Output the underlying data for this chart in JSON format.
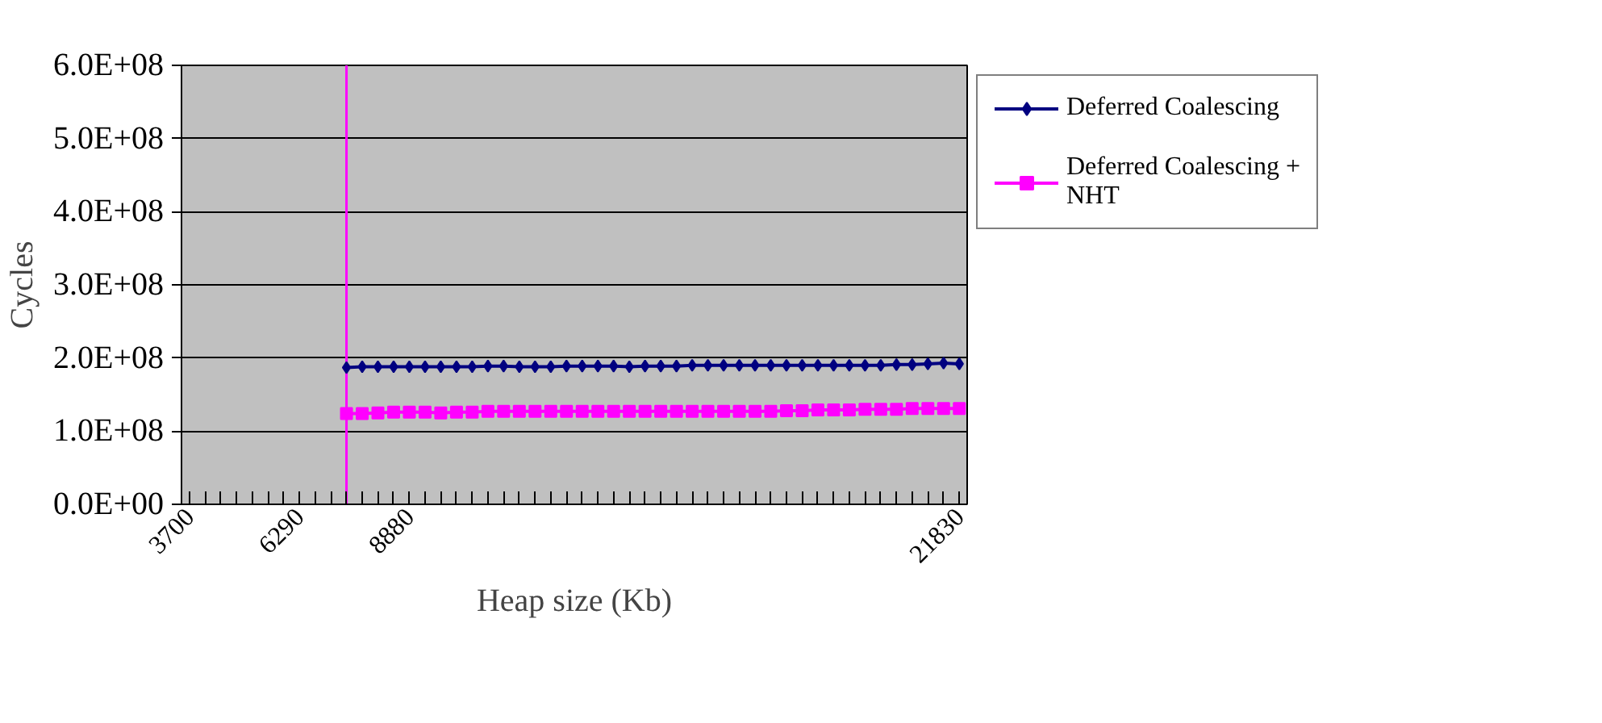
{
  "chart_data": {
    "type": "line",
    "xlabel": "Heap size (Kb)",
    "ylabel": "Cycles",
    "x": [
      7400,
      7770,
      8140,
      8510,
      8880,
      9250,
      9620,
      9990,
      10360,
      10730,
      11100,
      11470,
      11840,
      12210,
      12580,
      12950,
      13320,
      13690,
      14060,
      14430,
      14800,
      15170,
      15540,
      15910,
      16280,
      16650,
      17020,
      17390,
      17760,
      18130,
      18500,
      18870,
      19240,
      19610,
      19980,
      20350,
      20720,
      21090,
      21460,
      21830
    ],
    "series": [
      {
        "name": "Deferred Coalescing",
        "color": "#000080",
        "marker": "diamond",
        "values": [
          187000000,
          188000000,
          188000000,
          188000000,
          188000000,
          188000000,
          188000000,
          188000000,
          188000000,
          189000000,
          189000000,
          188000000,
          188000000,
          188000000,
          189000000,
          189000000,
          189000000,
          189000000,
          188000000,
          189000000,
          189000000,
          189000000,
          190000000,
          190000000,
          190000000,
          190000000,
          190000000,
          190000000,
          190000000,
          190000000,
          190000000,
          190000000,
          190000000,
          190000000,
          190000000,
          191000000,
          191000000,
          192000000,
          193000000,
          192000000
        ]
      },
      {
        "name": "Deferred Coalescing + NHT",
        "color": "#ff00ff",
        "marker": "square",
        "values": [
          124000000,
          124000000,
          125000000,
          126000000,
          126000000,
          126000000,
          125000000,
          126000000,
          126000000,
          127000000,
          127000000,
          127000000,
          127000000,
          127000000,
          127000000,
          127000000,
          127000000,
          127000000,
          127000000,
          127000000,
          127000000,
          127000000,
          127000000,
          127000000,
          127000000,
          127000000,
          127000000,
          127000000,
          128000000,
          128000000,
          129000000,
          129000000,
          129000000,
          130000000,
          130000000,
          130000000,
          131000000,
          131000000,
          131000000,
          131000000
        ]
      }
    ],
    "xlim": [
      3515,
      22015
    ],
    "xticks": [
      {
        "value": 3700,
        "label": "3700"
      },
      {
        "value": 4070,
        "label": null
      },
      {
        "value": 4440,
        "label": null
      },
      {
        "value": 4810,
        "label": null
      },
      {
        "value": 5180,
        "label": null
      },
      {
        "value": 5550,
        "label": null
      },
      {
        "value": 5920,
        "label": null
      },
      {
        "value": 6290,
        "label": "6290"
      },
      {
        "value": 6660,
        "label": null
      },
      {
        "value": 7030,
        "label": null
      },
      {
        "value": 7400,
        "label": null
      },
      {
        "value": 7770,
        "label": null
      },
      {
        "value": 8140,
        "label": null
      },
      {
        "value": 8510,
        "label": null
      },
      {
        "value": 8880,
        "label": "8880"
      },
      {
        "value": 9250,
        "label": null
      },
      {
        "value": 9620,
        "label": null
      },
      {
        "value": 9990,
        "label": null
      },
      {
        "value": 10360,
        "label": null
      },
      {
        "value": 10730,
        "label": null
      },
      {
        "value": 11100,
        "label": null
      },
      {
        "value": 11470,
        "label": null
      },
      {
        "value": 11840,
        "label": null
      },
      {
        "value": 12210,
        "label": null
      },
      {
        "value": 12580,
        "label": null
      },
      {
        "value": 12950,
        "label": null
      },
      {
        "value": 13320,
        "label": null
      },
      {
        "value": 13690,
        "label": null
      },
      {
        "value": 14060,
        "label": null
      },
      {
        "value": 14430,
        "label": null
      },
      {
        "value": 14800,
        "label": null
      },
      {
        "value": 15170,
        "label": null
      },
      {
        "value": 15540,
        "label": null
      },
      {
        "value": 15910,
        "label": null
      },
      {
        "value": 16280,
        "label": null
      },
      {
        "value": 16650,
        "label": null
      },
      {
        "value": 17020,
        "label": null
      },
      {
        "value": 17390,
        "label": null
      },
      {
        "value": 17760,
        "label": null
      },
      {
        "value": 18130,
        "label": null
      },
      {
        "value": 18500,
        "label": null
      },
      {
        "value": 18870,
        "label": null
      },
      {
        "value": 19240,
        "label": null
      },
      {
        "value": 19610,
        "label": null
      },
      {
        "value": 19980,
        "label": null
      },
      {
        "value": 20350,
        "label": null
      },
      {
        "value": 20720,
        "label": null
      },
      {
        "value": 21090,
        "label": null
      },
      {
        "value": 21460,
        "label": null
      },
      {
        "value": 21830,
        "label": "21830"
      }
    ],
    "ylim": [
      0,
      600000000
    ],
    "yticks": [
      {
        "value": 0,
        "label": "0.0E+00"
      },
      {
        "value": 100000000,
        "label": "1.0E+08"
      },
      {
        "value": 200000000,
        "label": "2.0E+08"
      },
      {
        "value": 300000000,
        "label": "3.0E+08"
      },
      {
        "value": 400000000,
        "label": "4.0E+08"
      },
      {
        "value": 500000000,
        "label": "5.0E+08"
      },
      {
        "value": 600000000,
        "label": "6.0E+08"
      }
    ],
    "grid": "y",
    "legend": "right",
    "line_style": "solid",
    "ref_lines": [
      {
        "axis": "x",
        "value": 7400,
        "label": null,
        "color": "#ff00ff"
      }
    ]
  }
}
